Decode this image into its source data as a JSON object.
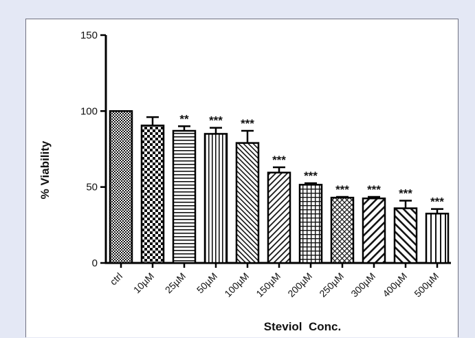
{
  "chart_data": {
    "type": "bar",
    "title": "",
    "xlabel": "Steviol  Conc.",
    "ylabel": "% Viability",
    "ylim": [
      0,
      150
    ],
    "yticks": [
      0,
      50,
      100,
      150
    ],
    "categories": [
      "ctrl",
      "10µM",
      "25µM",
      "50µM",
      "100µM",
      "150µM",
      "200µM",
      "250µM",
      "300µM",
      "400µM",
      "500µM"
    ],
    "values": [
      100,
      90.5,
      87,
      85,
      79,
      59.5,
      51.5,
      43,
      42.5,
      36,
      32.5
    ],
    "errors": [
      0,
      5.5,
      3,
      4,
      8,
      3.5,
      1,
      0.5,
      1,
      5,
      3
    ],
    "significance": [
      "",
      "",
      "**",
      "***",
      "***",
      "***",
      "***",
      "***",
      "***",
      "***",
      "***"
    ],
    "patterns": [
      "fine-checker",
      "checker",
      "horizontal-lines",
      "vertical-lines",
      "diagonal-dense",
      "diagonal-back",
      "grid",
      "crosshatch-fine",
      "diagonal-back-wide",
      "diagonal-wide",
      "vertical-lines-sparse"
    ],
    "grid": false,
    "legend": "none"
  }
}
